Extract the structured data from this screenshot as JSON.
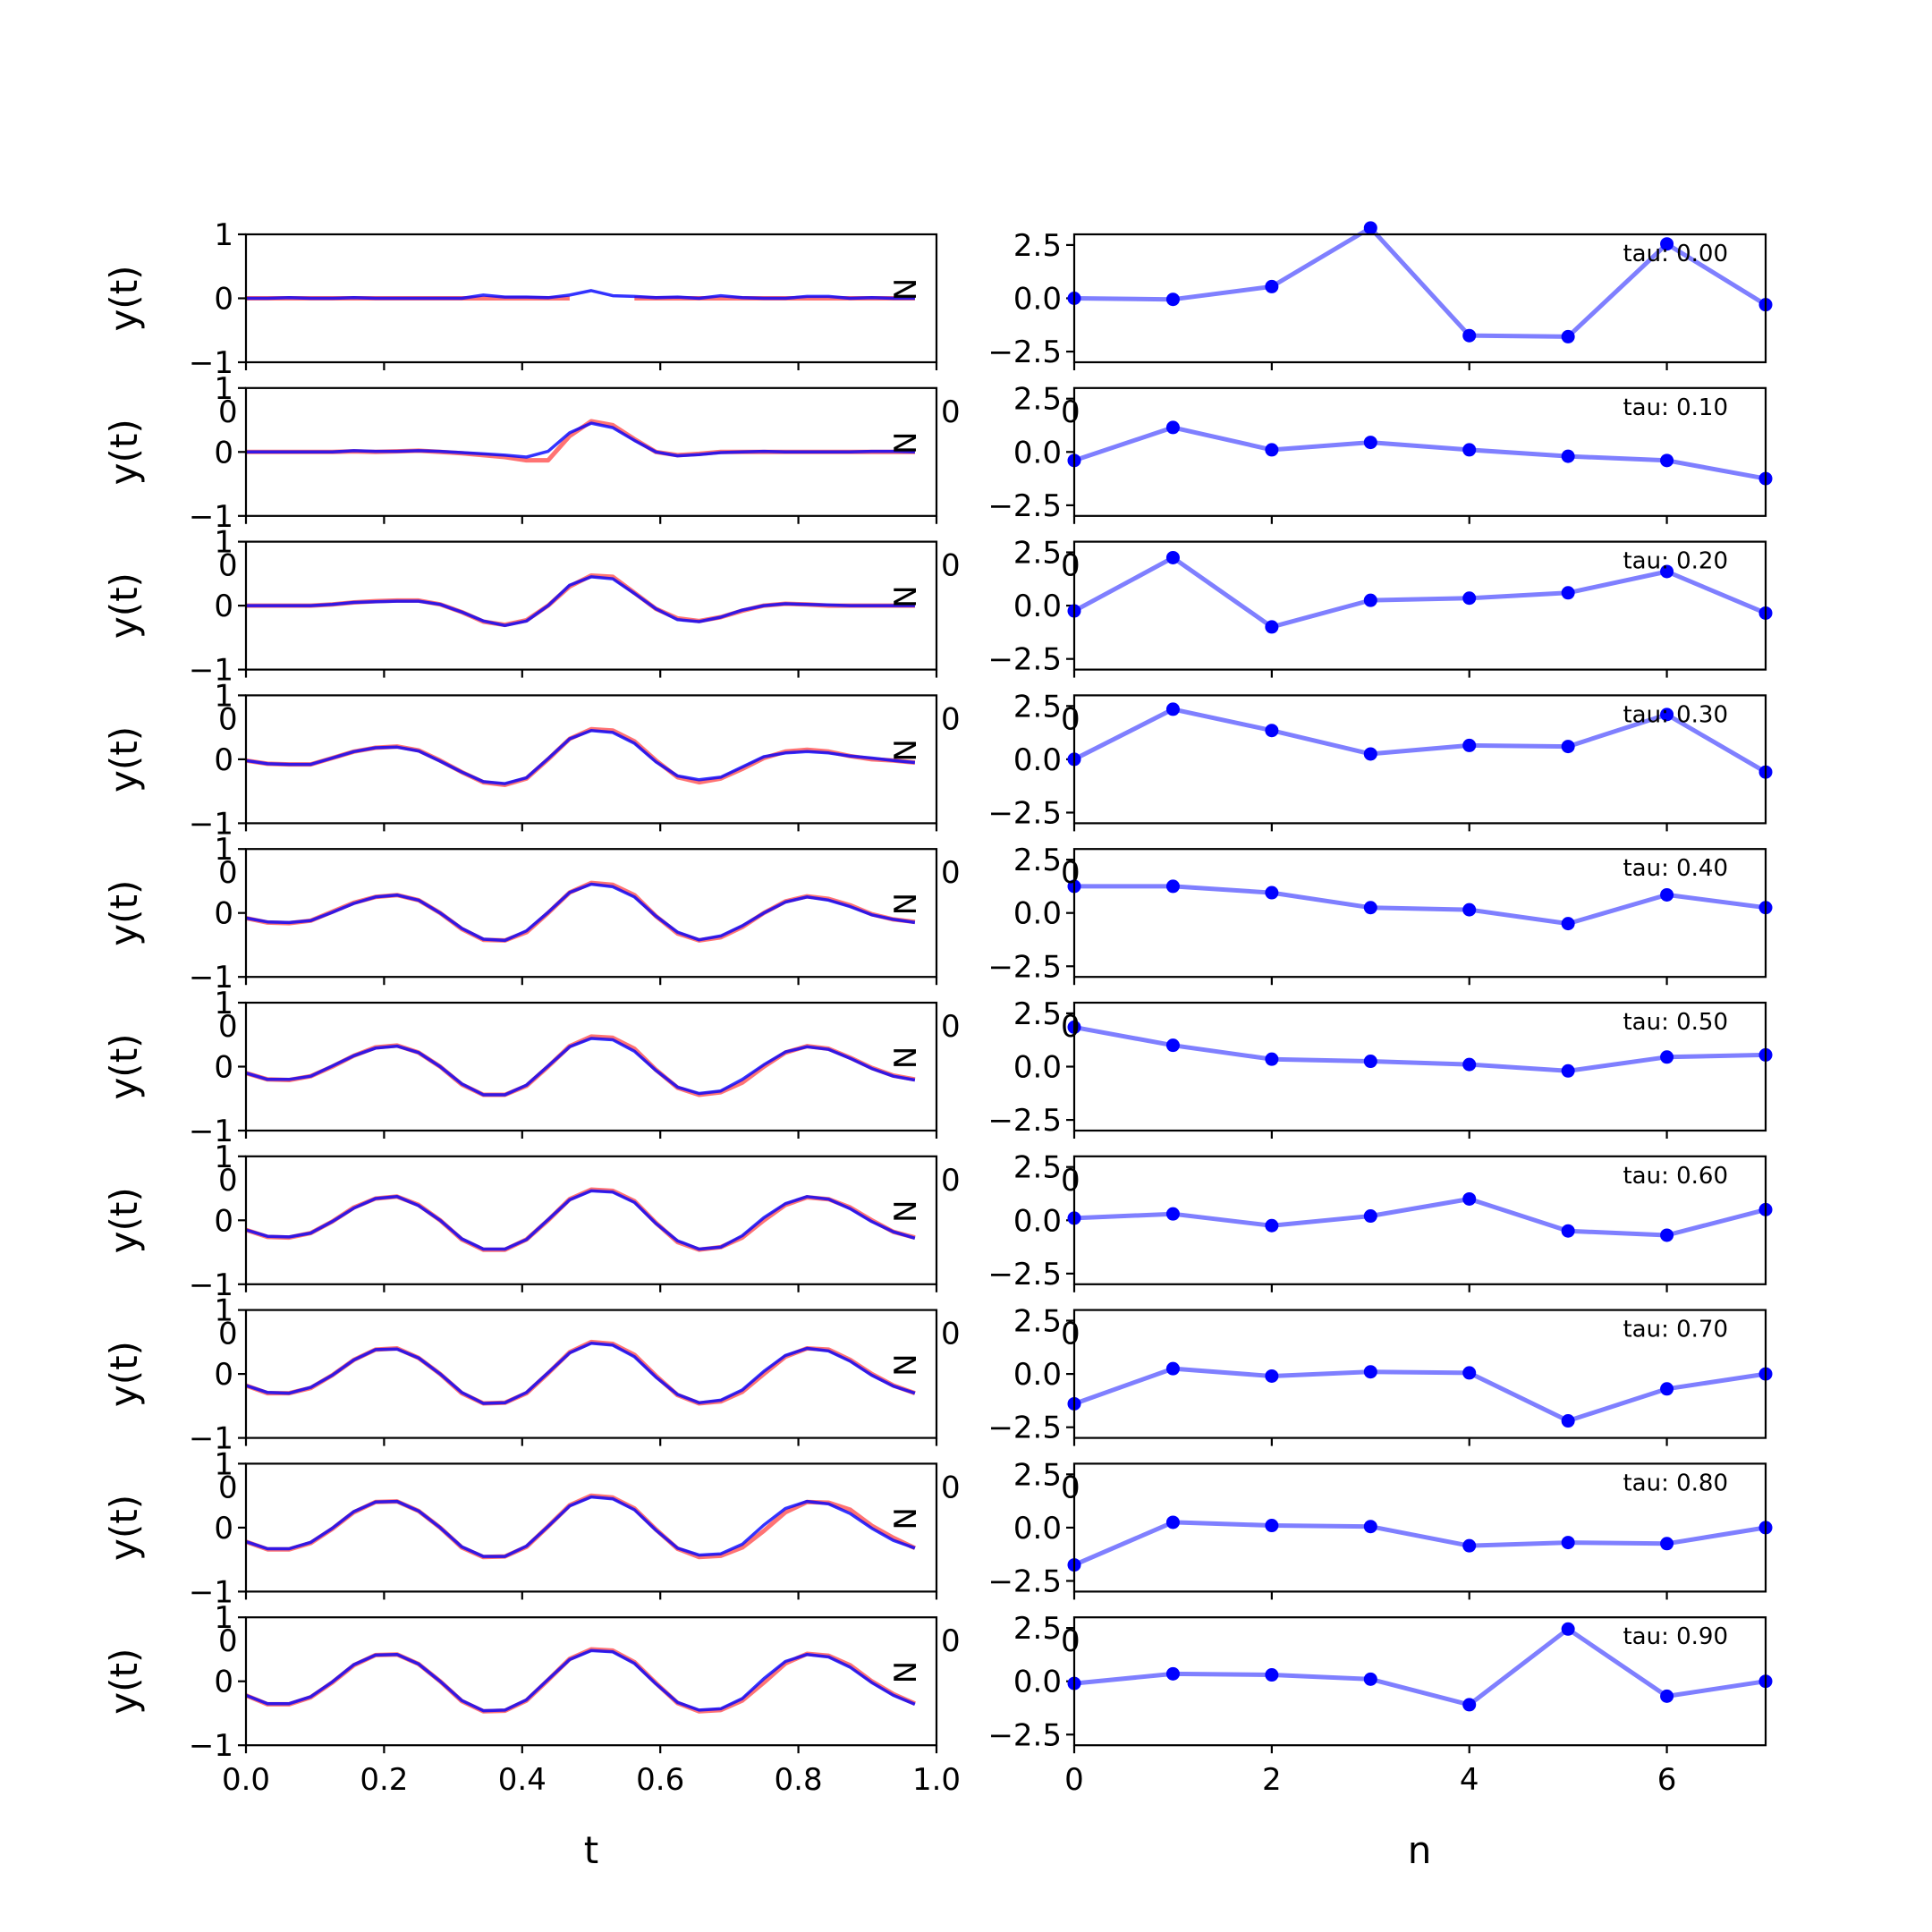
{
  "chart_data": [
    {
      "type": "line",
      "panel": "left",
      "xlabel": "t",
      "ylabel": "y(t)",
      "xlim": [
        0.0,
        1.0
      ],
      "ylim": [
        -1,
        1
      ],
      "xticks": [
        "0.0",
        "0.2",
        "0.4",
        "0.6",
        "0.8",
        "1.0"
      ],
      "yticks": [
        "1",
        "0",
        "−1"
      ],
      "clipped_text": {
        "top_left": "0",
        "right_edge": "N"
      },
      "series_colors": {
        "reference": "#ff0000",
        "estimate": "#0000ff"
      },
      "x": [
        0.0,
        0.03125,
        0.0625,
        0.09375,
        0.125,
        0.15625,
        0.1875,
        0.21875,
        0.25,
        0.28125,
        0.3125,
        0.34375,
        0.375,
        0.40625,
        0.4375,
        0.46875,
        0.5,
        0.53125,
        0.5625,
        0.59375,
        0.625,
        0.65625,
        0.6875,
        0.71875,
        0.75,
        0.78125,
        0.8125,
        0.84375,
        0.875,
        0.90625,
        0.9375,
        0.96875
      ],
      "rows": [
        {
          "reference": [
            0.0,
            0.0,
            0.0,
            0.0,
            0.0,
            0.0,
            0.0,
            0.0,
            0.0,
            0.0,
            0.0,
            0.0,
            0.0,
            0.0,
            0.0,
            0.0,
            null,
            null,
            0.0,
            0.0,
            0.0,
            0.0,
            0.0,
            0.0,
            0.0,
            0.0,
            0.0,
            0.0,
            0.0,
            0.0,
            0.0,
            0.0
          ],
          "estimate": [
            0.0,
            0.0,
            0.01,
            0.0,
            0.0,
            0.01,
            0.0,
            0.0,
            0.0,
            0.0,
            0.0,
            0.05,
            0.02,
            0.02,
            0.01,
            0.05,
            0.12,
            0.04,
            0.03,
            0.01,
            0.02,
            0.0,
            0.04,
            0.01,
            0.0,
            0.0,
            0.03,
            0.03,
            0.0,
            0.01,
            0.0,
            0.0
          ]
        },
        {
          "reference": [
            0.0,
            0.0,
            0.0,
            0.0,
            0.0,
            0.01,
            0.0,
            0.01,
            0.02,
            0.0,
            -0.02,
            -0.05,
            -0.08,
            -0.13,
            -0.13,
            0.25,
            0.48,
            0.42,
            0.2,
            0.0,
            -0.05,
            -0.03,
            0.0,
            0.0,
            0.0,
            0.0,
            0.0,
            0.0,
            0.0,
            0.0,
            0.0,
            0.0
          ],
          "estimate": [
            0.0,
            0.0,
            0.0,
            0.0,
            0.0,
            0.02,
            0.01,
            0.01,
            0.02,
            0.01,
            -0.01,
            -0.03,
            -0.05,
            -0.08,
            0.01,
            0.3,
            0.45,
            0.38,
            0.18,
            0.0,
            -0.06,
            -0.04,
            -0.01,
            0.0,
            0.01,
            0.0,
            0.0,
            0.0,
            0.0,
            0.01,
            0.01,
            0.0
          ],
          "source_estimate_note": "red partially hidden"
        },
        {
          "reference": [
            0.0,
            0.0,
            0.0,
            0.0,
            0.02,
            0.05,
            0.07,
            0.08,
            0.08,
            0.02,
            -0.1,
            -0.25,
            -0.3,
            -0.23,
            0.0,
            0.3,
            0.47,
            0.45,
            0.2,
            -0.05,
            -0.2,
            -0.24,
            -0.18,
            -0.08,
            0.0,
            0.03,
            0.02,
            0.0,
            0.0,
            0.0,
            0.0,
            0.0
          ],
          "estimate": [
            0.0,
            0.0,
            0.0,
            0.0,
            0.02,
            0.05,
            0.06,
            0.07,
            0.07,
            0.02,
            -0.1,
            -0.24,
            -0.31,
            -0.24,
            0.0,
            0.32,
            0.45,
            0.42,
            0.19,
            -0.05,
            -0.22,
            -0.25,
            -0.18,
            -0.07,
            0.0,
            0.03,
            0.02,
            0.01,
            0.0,
            0.0,
            0.0,
            0.0
          ]
        },
        {
          "reference": [
            -0.02,
            -0.07,
            -0.08,
            -0.08,
            0.02,
            0.12,
            0.18,
            0.2,
            0.14,
            -0.02,
            -0.2,
            -0.36,
            -0.4,
            -0.3,
            0.0,
            0.32,
            0.47,
            0.45,
            0.28,
            -0.02,
            -0.28,
            -0.36,
            -0.3,
            -0.15,
            0.02,
            0.12,
            0.15,
            0.12,
            0.05,
            0.0,
            -0.02,
            -0.05
          ],
          "estimate": [
            -0.02,
            -0.07,
            -0.08,
            -0.08,
            0.02,
            0.12,
            0.18,
            0.19,
            0.13,
            -0.03,
            -0.2,
            -0.35,
            -0.38,
            -0.29,
            0.01,
            0.32,
            0.45,
            0.42,
            0.25,
            -0.04,
            -0.26,
            -0.32,
            -0.28,
            -0.12,
            0.04,
            0.1,
            0.12,
            0.1,
            0.05,
            0.02,
            -0.02,
            -0.05
          ]
        },
        {
          "reference": [
            -0.08,
            -0.15,
            -0.16,
            -0.12,
            0.02,
            0.16,
            0.25,
            0.28,
            0.2,
            0.0,
            -0.25,
            -0.42,
            -0.43,
            -0.3,
            0.0,
            0.32,
            0.47,
            0.44,
            0.28,
            -0.05,
            -0.32,
            -0.43,
            -0.38,
            -0.22,
            0.0,
            0.18,
            0.26,
            0.22,
            0.12,
            -0.02,
            -0.1,
            -0.14
          ],
          "estimate": [
            -0.08,
            -0.14,
            -0.15,
            -0.12,
            0.01,
            0.15,
            0.25,
            0.28,
            0.2,
            0.0,
            -0.24,
            -0.41,
            -0.43,
            -0.28,
            0.01,
            0.32,
            0.45,
            0.41,
            0.25,
            -0.05,
            -0.3,
            -0.42,
            -0.36,
            -0.2,
            0.0,
            0.17,
            0.25,
            0.2,
            0.1,
            -0.03,
            -0.1,
            -0.15
          ]
        },
        {
          "reference": [
            -0.1,
            -0.2,
            -0.21,
            -0.15,
            0.0,
            0.17,
            0.3,
            0.33,
            0.22,
            0.0,
            -0.28,
            -0.44,
            -0.44,
            -0.3,
            0.0,
            0.32,
            0.47,
            0.45,
            0.28,
            -0.05,
            -0.33,
            -0.44,
            -0.4,
            -0.25,
            0.0,
            0.22,
            0.32,
            0.28,
            0.14,
            -0.02,
            -0.14,
            -0.2
          ],
          "estimate": [
            -0.1,
            -0.2,
            -0.2,
            -0.15,
            0.01,
            0.17,
            0.29,
            0.32,
            0.22,
            0.0,
            -0.27,
            -0.44,
            -0.44,
            -0.29,
            0.01,
            0.31,
            0.44,
            0.42,
            0.24,
            -0.06,
            -0.32,
            -0.42,
            -0.38,
            -0.2,
            0.03,
            0.23,
            0.31,
            0.27,
            0.13,
            -0.03,
            -0.15,
            -0.21
          ]
        },
        {
          "reference": [
            -0.15,
            -0.26,
            -0.27,
            -0.2,
            -0.02,
            0.2,
            0.34,
            0.37,
            0.24,
            0.0,
            -0.3,
            -0.46,
            -0.46,
            -0.3,
            0.0,
            0.33,
            0.48,
            0.46,
            0.3,
            -0.04,
            -0.34,
            -0.46,
            -0.42,
            -0.27,
            0.0,
            0.24,
            0.36,
            0.33,
            0.2,
            0.0,
            -0.18,
            -0.27
          ],
          "estimate": [
            -0.15,
            -0.25,
            -0.26,
            -0.2,
            -0.02,
            0.19,
            0.34,
            0.37,
            0.23,
            0.0,
            -0.29,
            -0.45,
            -0.45,
            -0.3,
            0.01,
            0.32,
            0.46,
            0.44,
            0.28,
            -0.05,
            -0.32,
            -0.45,
            -0.42,
            -0.24,
            0.04,
            0.26,
            0.37,
            0.33,
            0.18,
            -0.02,
            -0.18,
            -0.28
          ]
        },
        {
          "reference": [
            -0.18,
            -0.3,
            -0.3,
            -0.22,
            -0.02,
            0.22,
            0.38,
            0.4,
            0.25,
            0.0,
            -0.3,
            -0.46,
            -0.45,
            -0.3,
            0.01,
            0.34,
            0.5,
            0.47,
            0.3,
            -0.03,
            -0.33,
            -0.46,
            -0.43,
            -0.28,
            0.0,
            0.27,
            0.4,
            0.38,
            0.22,
            0.0,
            -0.18,
            -0.3
          ],
          "estimate": [
            -0.18,
            -0.29,
            -0.3,
            -0.21,
            -0.02,
            0.22,
            0.38,
            0.39,
            0.25,
            0.0,
            -0.29,
            -0.46,
            -0.45,
            -0.29,
            0.02,
            0.33,
            0.48,
            0.45,
            0.27,
            -0.05,
            -0.32,
            -0.45,
            -0.41,
            -0.25,
            0.04,
            0.29,
            0.4,
            0.36,
            0.2,
            -0.02,
            -0.19,
            -0.3
          ]
        },
        {
          "reference": [
            -0.22,
            -0.34,
            -0.34,
            -0.24,
            -0.02,
            0.24,
            0.4,
            0.41,
            0.26,
            0.0,
            -0.31,
            -0.46,
            -0.45,
            -0.3,
            0.02,
            0.35,
            0.5,
            0.47,
            0.3,
            -0.03,
            -0.33,
            -0.46,
            -0.44,
            -0.31,
            -0.05,
            0.24,
            0.4,
            0.39,
            0.28,
            0.03,
            -0.16,
            -0.32
          ],
          "estimate": [
            -0.22,
            -0.33,
            -0.33,
            -0.23,
            -0.01,
            0.25,
            0.4,
            0.41,
            0.26,
            0.0,
            -0.3,
            -0.45,
            -0.45,
            -0.29,
            0.02,
            0.34,
            0.48,
            0.45,
            0.28,
            -0.04,
            -0.32,
            -0.43,
            -0.41,
            -0.26,
            0.04,
            0.3,
            0.41,
            0.37,
            0.22,
            -0.01,
            -0.2,
            -0.32
          ]
        },
        {
          "reference": [
            -0.22,
            -0.36,
            -0.36,
            -0.25,
            -0.02,
            0.25,
            0.41,
            0.42,
            0.27,
            0.0,
            -0.31,
            -0.47,
            -0.46,
            -0.3,
            0.02,
            0.35,
            0.5,
            0.48,
            0.3,
            -0.03,
            -0.34,
            -0.47,
            -0.45,
            -0.3,
            -0.02,
            0.28,
            0.43,
            0.4,
            0.25,
            0.0,
            -0.2,
            -0.35
          ],
          "estimate": [
            -0.22,
            -0.35,
            -0.35,
            -0.24,
            -0.01,
            0.26,
            0.41,
            0.42,
            0.27,
            0.0,
            -0.3,
            -0.46,
            -0.45,
            -0.29,
            0.03,
            0.34,
            0.48,
            0.46,
            0.28,
            -0.04,
            -0.33,
            -0.45,
            -0.43,
            -0.27,
            0.04,
            0.31,
            0.42,
            0.38,
            0.22,
            -0.02,
            -0.22,
            -0.36
          ]
        }
      ]
    },
    {
      "type": "line",
      "panel": "right",
      "markers": true,
      "xlabel": "n",
      "xlim": [
        0,
        7
      ],
      "ylim": [
        -3.0,
        3.0
      ],
      "xticks": [
        "0",
        "2",
        "4",
        "6"
      ],
      "yticks": [
        "2.5",
        "0.0",
        "−2.5"
      ],
      "clipped_text": {
        "left_edge": "0"
      },
      "line_color": "#0000ff",
      "line_alpha": 0.5,
      "x": [
        0,
        1,
        2,
        3,
        4,
        5,
        6,
        7
      ],
      "rows": [
        {
          "tau_label": "tau: 0.00",
          "values": [
            0.0,
            -0.05,
            0.55,
            3.3,
            -1.75,
            -1.8,
            2.55,
            -0.3
          ]
        },
        {
          "tau_label": "tau: 0.10",
          "values": [
            -0.4,
            1.15,
            0.1,
            0.45,
            0.1,
            -0.2,
            -0.4,
            -1.25
          ]
        },
        {
          "tau_label": "tau: 0.20",
          "values": [
            -0.25,
            2.25,
            -1.0,
            0.25,
            0.35,
            0.6,
            1.6,
            -0.35
          ]
        },
        {
          "tau_label": "tau: 0.30",
          "values": [
            0.0,
            2.35,
            1.35,
            0.25,
            0.65,
            0.6,
            2.1,
            -0.6
          ]
        },
        {
          "tau_label": "tau: 0.40",
          "values": [
            1.25,
            1.25,
            0.95,
            0.25,
            0.15,
            -0.5,
            0.85,
            0.25
          ]
        },
        {
          "tau_label": "tau: 0.50",
          "values": [
            1.85,
            1.0,
            0.35,
            0.25,
            0.1,
            -0.2,
            0.45,
            0.55
          ]
        },
        {
          "tau_label": "tau: 0.60",
          "values": [
            0.1,
            0.3,
            -0.25,
            0.2,
            1.0,
            -0.5,
            -0.7,
            0.5
          ]
        },
        {
          "tau_label": "tau: 0.70",
          "values": [
            -1.4,
            0.25,
            -0.1,
            0.1,
            0.05,
            -2.2,
            -0.7,
            0.0
          ]
        },
        {
          "tau_label": "tau: 0.80",
          "values": [
            -1.75,
            0.25,
            0.1,
            0.05,
            -0.85,
            -0.7,
            -0.75,
            0.0
          ]
        },
        {
          "tau_label": "tau: 0.90",
          "values": [
            -0.1,
            0.35,
            0.3,
            0.1,
            -1.1,
            2.45,
            -0.7,
            0.0
          ]
        }
      ]
    }
  ]
}
